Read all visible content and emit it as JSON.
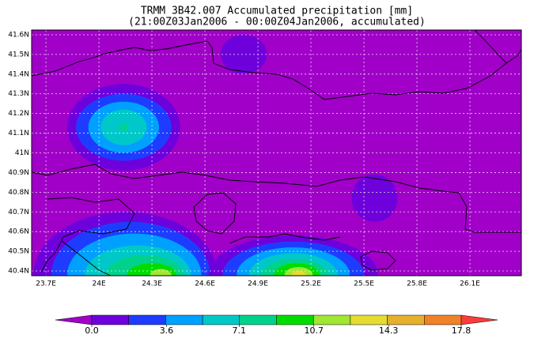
{
  "chart_data": {
    "type": "contour-map",
    "title": "TRMM 3B42.007 Accumulated precipitation [mm]",
    "subtitle": "(21:00Z03Jan2006 - 00:00Z04Jan2006, accumulated)",
    "xlim": [
      23.619,
      26.391
    ],
    "ylim": [
      40.376,
      41.624
    ],
    "xticks": [
      {
        "value": 23.7,
        "label": "23.7E"
      },
      {
        "value": 24,
        "label": "24E"
      },
      {
        "value": 24.3,
        "label": "24.3E"
      },
      {
        "value": 24.6,
        "label": "24.6E"
      },
      {
        "value": 24.9,
        "label": "24.9E"
      },
      {
        "value": 25.2,
        "label": "25.2E"
      },
      {
        "value": 25.5,
        "label": "25.5E"
      },
      {
        "value": 25.8,
        "label": "25.8E"
      },
      {
        "value": 26.1,
        "label": "26.1E"
      }
    ],
    "yticks": [
      {
        "value": 40.4,
        "label": "40.4N"
      },
      {
        "value": 40.5,
        "label": "40.5N"
      },
      {
        "value": 40.6,
        "label": "40.6N"
      },
      {
        "value": 40.7,
        "label": "40.7N"
      },
      {
        "value": 40.8,
        "label": "40.8N"
      },
      {
        "value": 40.9,
        "label": "40.9N"
      },
      {
        "value": 41,
        "label": "41N"
      },
      {
        "value": 41.1,
        "label": "41.1N"
      },
      {
        "value": 41.2,
        "label": "41.2N"
      },
      {
        "value": 41.3,
        "label": "41.3N"
      },
      {
        "value": 41.4,
        "label": "41.4N"
      },
      {
        "value": 41.5,
        "label": "41.5N"
      },
      {
        "value": 41.6,
        "label": "41.6N"
      }
    ],
    "grid": true,
    "background_color": "#a000c8",
    "colors": [
      "#a000c8",
      "#6e00dc",
      "#1e3cff",
      "#00a0ff",
      "#00c8c8",
      "#00d28c",
      "#00dc00",
      "#a0e632",
      "#e6dc32",
      "#e6af2d",
      "#f08228",
      "#fa3c3c"
    ],
    "colorbar_ticks": [
      {
        "value": 0,
        "label": "0.0"
      },
      3.6,
      7.1,
      10.7,
      14.3,
      17.8
    ],
    "contours": [
      {
        "lon": 24.82,
        "lat": 41.5,
        "rx": 0.13,
        "ry": 0.1,
        "value": 1
      },
      {
        "lon": 25.56,
        "lat": 40.77,
        "rx": 0.13,
        "ry": 0.12,
        "value": 1
      },
      {
        "lon": 24.14,
        "lat": 41.13,
        "rx": 0.32,
        "ry": 0.22,
        "value": 1
      },
      {
        "lon": 24.14,
        "lat": 41.13,
        "rx": 0.27,
        "ry": 0.17,
        "value": 2.5
      },
      {
        "lon": 24.14,
        "lat": 41.13,
        "rx": 0.2,
        "ry": 0.13,
        "value": 4.5
      },
      {
        "lon": 24.14,
        "lat": 41.13,
        "rx": 0.13,
        "ry": 0.09,
        "value": 6
      },
      {
        "lon": 24.14,
        "lat": 41.13,
        "rx": 0.02,
        "ry": 0.02,
        "value": 8
      },
      {
        "lon": 24.15,
        "lat": 40.38,
        "rx": 0.52,
        "ry": 0.32,
        "value": 1
      },
      {
        "lon": 24.18,
        "lat": 40.38,
        "rx": 0.45,
        "ry": 0.27,
        "value": 2.5
      },
      {
        "lon": 24.2,
        "lat": 40.38,
        "rx": 0.38,
        "ry": 0.21,
        "value": 4.5
      },
      {
        "lon": 24.22,
        "lat": 40.38,
        "rx": 0.3,
        "ry": 0.15,
        "value": 6
      },
      {
        "lon": 24.26,
        "lat": 40.38,
        "rx": 0.22,
        "ry": 0.1,
        "value": 8
      },
      {
        "lon": 24.3,
        "lat": 40.38,
        "rx": 0.14,
        "ry": 0.06,
        "value": 10
      },
      {
        "lon": 24.35,
        "lat": 40.38,
        "rx": 0.06,
        "ry": 0.03,
        "value": 12
      },
      {
        "lon": 25.1,
        "lat": 40.38,
        "rx": 0.48,
        "ry": 0.2,
        "value": 1
      },
      {
        "lon": 25.1,
        "lat": 40.38,
        "rx": 0.4,
        "ry": 0.17,
        "value": 2.5
      },
      {
        "lon": 25.1,
        "lat": 40.38,
        "rx": 0.32,
        "ry": 0.14,
        "value": 4.5
      },
      {
        "lon": 25.1,
        "lat": 40.38,
        "rx": 0.25,
        "ry": 0.11,
        "value": 6
      },
      {
        "lon": 25.11,
        "lat": 40.38,
        "rx": 0.19,
        "ry": 0.08,
        "value": 8
      },
      {
        "lon": 25.12,
        "lat": 40.38,
        "rx": 0.13,
        "ry": 0.06,
        "value": 10
      },
      {
        "lon": 25.13,
        "lat": 40.38,
        "rx": 0.08,
        "ry": 0.04,
        "value": 12
      },
      {
        "lon": 25.13,
        "lat": 40.38,
        "rx": 0.04,
        "ry": 0.02,
        "value": 13.5
      }
    ]
  }
}
